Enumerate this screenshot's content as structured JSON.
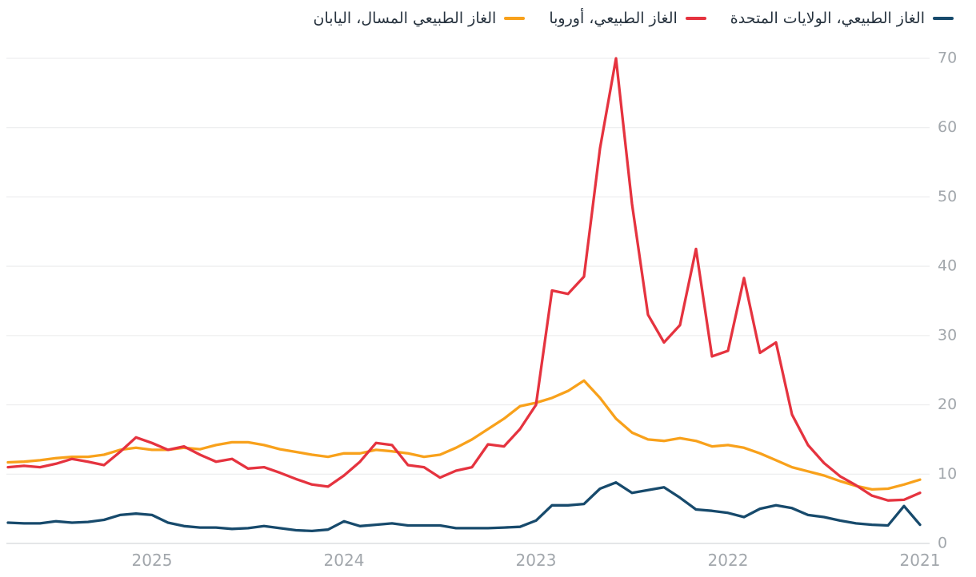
{
  "page": {
    "background": "#ffffff"
  },
  "legend": {
    "position": "top-right",
    "items": [
      {
        "label": "الغاز الطبيعي، الولايات المتحدة",
        "color": "#174a6c"
      },
      {
        "label": "الغاز الطبيعي، أوروبا",
        "color": "#e5333f"
      },
      {
        "label": "الغاز الطبيعي المسال، اليابان",
        "color": "#f8a11b"
      }
    ]
  },
  "chart_data": {
    "type": "line",
    "title": "",
    "xlabel": "",
    "ylabel": "",
    "direction": "rtl",
    "grid": "horizontal",
    "legend_position": "top-right",
    "y_axis_side": "right",
    "ylim": [
      0,
      70
    ],
    "y_ticks": [
      0,
      10,
      20,
      30,
      40,
      50,
      60,
      70
    ],
    "x_tick_labels": [
      "2025",
      "2024",
      "2023",
      "2022",
      "2021"
    ],
    "x_months": [
      "2021-01",
      "2021-02",
      "2021-03",
      "2021-04",
      "2021-05",
      "2021-06",
      "2021-07",
      "2021-08",
      "2021-09",
      "2021-10",
      "2021-11",
      "2021-12",
      "2022-01",
      "2022-02",
      "2022-03",
      "2022-04",
      "2022-05",
      "2022-06",
      "2022-07",
      "2022-08",
      "2022-09",
      "2022-10",
      "2022-11",
      "2022-12",
      "2023-01",
      "2023-02",
      "2023-03",
      "2023-04",
      "2023-05",
      "2023-06",
      "2023-07",
      "2023-08",
      "2023-09",
      "2023-10",
      "2023-11",
      "2023-12",
      "2024-01",
      "2024-02",
      "2024-03",
      "2024-04",
      "2024-05",
      "2024-06",
      "2024-07",
      "2024-08",
      "2024-09",
      "2024-10",
      "2024-11",
      "2024-12",
      "2025-01",
      "2025-02",
      "2025-03",
      "2025-04",
      "2025-05",
      "2025-06",
      "2025-07",
      "2025-08",
      "2025-09",
      "2025-10"
    ],
    "series": [
      {
        "name": "الغاز الطبيعي، الولايات المتحدة",
        "color": "#174a6c",
        "values": [
          2.7,
          5.4,
          2.6,
          2.7,
          2.9,
          3.3,
          3.8,
          4.1,
          5.1,
          5.5,
          5.0,
          3.8,
          4.4,
          4.7,
          4.9,
          6.6,
          8.1,
          7.7,
          7.3,
          8.8,
          7.9,
          5.7,
          5.5,
          5.5,
          3.3,
          2.4,
          2.3,
          2.2,
          2.2,
          2.2,
          2.6,
          2.6,
          2.6,
          2.9,
          2.7,
          2.5,
          3.2,
          2.0,
          1.8,
          1.9,
          2.2,
          2.5,
          2.2,
          2.1,
          2.3,
          2.3,
          2.5,
          3.0,
          4.1,
          4.3,
          4.1,
          3.4,
          3.1,
          3.0,
          3.2,
          2.9,
          2.9,
          3.0
        ]
      },
      {
        "name": "الغاز الطبيعي، أوروبا",
        "color": "#e5333f",
        "values": [
          7.3,
          6.3,
          6.2,
          6.9,
          8.4,
          9.7,
          11.6,
          14.2,
          18.6,
          29.0,
          27.5,
          38.3,
          27.8,
          27.0,
          42.5,
          31.5,
          29.0,
          33.0,
          49.0,
          70.0,
          57.0,
          38.5,
          36.0,
          36.5,
          20.0,
          16.5,
          14.0,
          14.3,
          11.0,
          10.5,
          9.5,
          11.0,
          11.3,
          14.2,
          14.5,
          11.8,
          9.8,
          8.2,
          8.5,
          9.3,
          10.2,
          11.0,
          10.8,
          12.2,
          11.8,
          12.8,
          14.0,
          13.5,
          14.5,
          15.3,
          13.2,
          11.3,
          11.8,
          12.2,
          11.5,
          11.0,
          11.2,
          11.0
        ]
      },
      {
        "name": "الغاز الطبيعي المسال، اليابان",
        "color": "#f8a11b",
        "values": [
          9.2,
          8.5,
          7.9,
          7.8,
          8.3,
          9.0,
          9.8,
          10.4,
          11.0,
          12.0,
          13.0,
          13.8,
          14.2,
          14.0,
          14.8,
          15.2,
          14.8,
          15.0,
          16.0,
          18.0,
          21.0,
          23.5,
          22.0,
          21.0,
          20.3,
          19.8,
          18.0,
          16.5,
          15.0,
          13.8,
          12.8,
          12.5,
          13.0,
          13.3,
          13.5,
          13.0,
          13.0,
          12.5,
          12.8,
          13.2,
          13.6,
          14.2,
          14.6,
          14.6,
          14.2,
          13.6,
          13.8,
          13.5,
          13.5,
          13.8,
          13.5,
          12.8,
          12.5,
          12.5,
          12.3,
          12.0,
          11.8,
          11.7
        ]
      }
    ],
    "style": {
      "gridline_color": "#e9eaeb",
      "baseline_color": "#c9cdd1",
      "tick_label_color": "#a2a7ac",
      "line_width": 3.3
    }
  }
}
